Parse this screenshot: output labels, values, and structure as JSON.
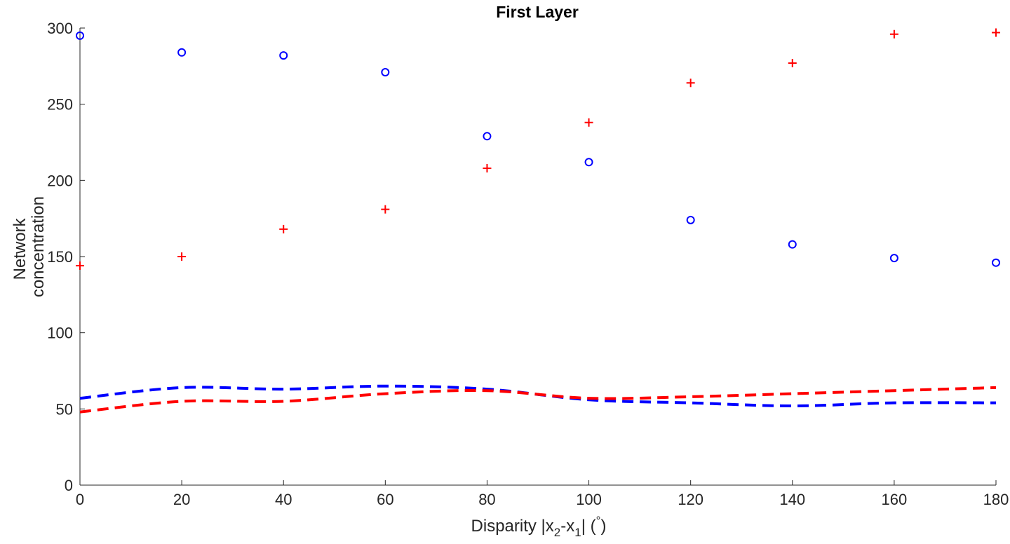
{
  "chart_data": {
    "type": "scatter",
    "title": "First Layer",
    "xlabel": "Disparity |x2-x1| (°)",
    "xlabel_parts": {
      "prefix": "Disparity |x",
      "sub1": "2",
      "mid": "-x",
      "sub2": "1",
      "suffix_open": "| (",
      "degree": "°",
      "suffix_close": ")"
    },
    "ylabel_lines": [
      "Network",
      "concentration"
    ],
    "xlim": [
      0,
      180
    ],
    "ylim": [
      0,
      300
    ],
    "xticks": [
      0,
      20,
      40,
      60,
      80,
      100,
      120,
      140,
      160,
      180
    ],
    "yticks": [
      0,
      50,
      100,
      150,
      200,
      250,
      300
    ],
    "grid": false,
    "series": [
      {
        "marker": "circle",
        "color": "#0000ff",
        "x": [
          0,
          20,
          40,
          60,
          80,
          100,
          120,
          140,
          160,
          180
        ],
        "values": [
          295,
          284,
          282,
          271,
          229,
          212,
          174,
          158,
          149,
          146
        ]
      },
      {
        "marker": "plus",
        "color": "#ff0000",
        "x": [
          0,
          20,
          40,
          60,
          80,
          100,
          120,
          140,
          160,
          180
        ],
        "values": [
          144,
          150,
          168,
          181,
          208,
          238,
          264,
          277,
          296,
          297
        ]
      },
      {
        "line": "dashed",
        "color": "#0000ff",
        "x": [
          0,
          20,
          40,
          60,
          80,
          100,
          120,
          140,
          160,
          180
        ],
        "values": [
          57,
          64,
          63,
          65,
          63,
          56,
          54,
          52,
          54,
          54
        ]
      },
      {
        "line": "dashed",
        "color": "#ff0000",
        "x": [
          0,
          20,
          40,
          60,
          80,
          100,
          120,
          140,
          160,
          180
        ],
        "values": [
          48,
          55,
          55,
          60,
          62,
          57,
          58,
          60,
          62,
          64
        ]
      }
    ]
  }
}
